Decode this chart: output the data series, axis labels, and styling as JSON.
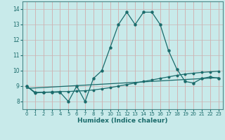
{
  "xlabel": "Humidex (Indice chaleur)",
  "xlim": [
    -0.5,
    23.5
  ],
  "ylim": [
    7.5,
    14.5
  ],
  "yticks": [
    8,
    9,
    10,
    11,
    12,
    13,
    14
  ],
  "xticks": [
    0,
    1,
    2,
    3,
    4,
    5,
    6,
    7,
    8,
    9,
    10,
    11,
    12,
    13,
    14,
    15,
    16,
    17,
    18,
    19,
    20,
    21,
    22,
    23
  ],
  "background_color": "#c8eaea",
  "line_color": "#1a6b6b",
  "grid_color_v": "#d4a0a0",
  "grid_color_h": "#c8b4b4",
  "series1_x": [
    0,
    1,
    2,
    3,
    4,
    5,
    6,
    7,
    8,
    9,
    10,
    11,
    12,
    13,
    14,
    15,
    16,
    17,
    18,
    19,
    20,
    21,
    22,
    23
  ],
  "series1_y": [
    9.0,
    8.6,
    8.6,
    8.6,
    8.6,
    8.0,
    9.0,
    8.0,
    9.5,
    10.0,
    11.5,
    13.0,
    13.8,
    13.0,
    13.8,
    13.8,
    13.0,
    11.3,
    10.1,
    9.3,
    9.2,
    9.5,
    9.6,
    9.5
  ],
  "series2_x": [
    0,
    1,
    2,
    3,
    4,
    5,
    6,
    7,
    8,
    9,
    10,
    11,
    12,
    13,
    14,
    15,
    16,
    17,
    18,
    19,
    20,
    21,
    22,
    23
  ],
  "series2_y": [
    9.0,
    8.55,
    8.6,
    8.62,
    8.65,
    8.65,
    8.68,
    8.7,
    8.75,
    8.82,
    8.9,
    9.0,
    9.1,
    9.2,
    9.3,
    9.4,
    9.5,
    9.6,
    9.7,
    9.78,
    9.84,
    9.89,
    9.93,
    9.97
  ],
  "series3_x": [
    0,
    23
  ],
  "series3_y": [
    8.85,
    9.55
  ]
}
